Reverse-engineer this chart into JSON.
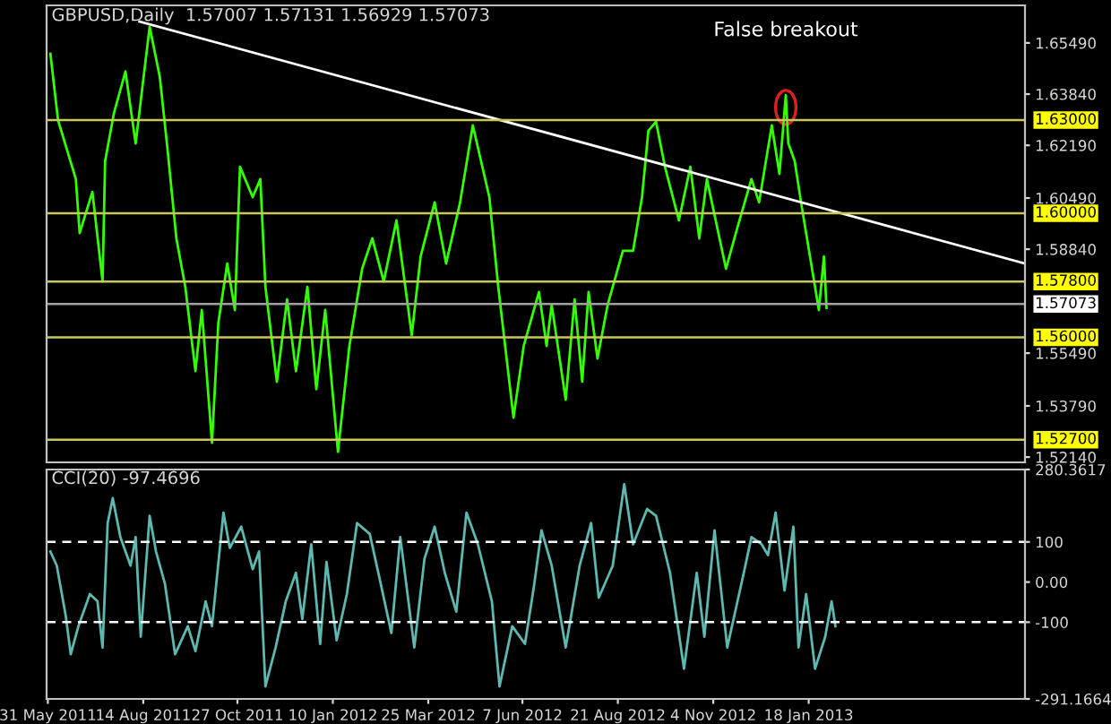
{
  "chart_data": [
    {
      "type": "line",
      "title": "GBPUSD,Daily  1.57007 1.57131 1.56929 1.57073",
      "xlim": [
        "2011-05-30",
        "2013-07-07"
      ],
      "ylim": [
        1.5197,
        1.667
      ],
      "tick_labels": "y",
      "yticks": [
        {
          "value": 1.6549,
          "label": "1.65490"
        },
        {
          "value": 1.6384,
          "label": "1.63840"
        },
        {
          "value": 1.6219,
          "label": "1.62190"
        },
        {
          "value": 1.6049,
          "label": "1.60490"
        },
        {
          "value": 1.5884,
          "label": "1.58840"
        },
        {
          "value": 1.5549,
          "label": "1.55490"
        },
        {
          "value": 1.5379,
          "label": "1.53790"
        },
        {
          "value": 1.5214,
          "label": "1.52140"
        }
      ],
      "series": [
        {
          "color": "#33ff00",
          "x": [
            "2011-06-02",
            "2011-06-08",
            "2011-06-22",
            "2011-06-25",
            "2011-07-05",
            "2011-07-13",
            "2011-07-15",
            "2011-07-22",
            "2011-07-31",
            "2011-08-08",
            "2011-08-19",
            "2011-08-27",
            "2011-09-02",
            "2011-09-09",
            "2011-09-16",
            "2011-09-24",
            "2011-09-29",
            "2011-10-07",
            "2011-10-12",
            "2011-10-19",
            "2011-10-25",
            "2011-10-29",
            "2011-11-08",
            "2011-11-14",
            "2011-11-18",
            "2011-11-27",
            "2011-12-05",
            "2011-12-12",
            "2011-12-21",
            "2011-12-28",
            "2012-01-04",
            "2012-01-14",
            "2012-01-23",
            "2012-02-02",
            "2012-02-10",
            "2012-02-19",
            "2012-02-29",
            "2012-03-12",
            "2012-03-19",
            "2012-03-30",
            "2012-04-08",
            "2012-04-19",
            "2012-04-29",
            "2012-05-12",
            "2012-05-19",
            "2012-05-31",
            "2012-06-08",
            "2012-06-20",
            "2012-06-26",
            "2012-06-30",
            "2012-07-11",
            "2012-07-18",
            "2012-07-24",
            "2012-07-29",
            "2012-08-05",
            "2012-08-13",
            "2012-08-25",
            "2012-09-02",
            "2012-09-09",
            "2012-09-14",
            "2012-09-20",
            "2012-09-27",
            "2012-10-08",
            "2012-10-17",
            "2012-10-24",
            "2012-10-30",
            "2012-11-14",
            "2012-11-23",
            "2012-12-04",
            "2012-12-10",
            "2012-12-20",
            "2012-12-26",
            "2012-12-31",
            "2013-01-02",
            "2013-01-07",
            "2013-01-12",
            "2013-01-19",
            "2013-01-26",
            "2013-01-30",
            "2013-02-01"
          ],
          "values": [
            1.6514,
            1.63,
            1.611,
            1.5936,
            1.6069,
            1.578,
            1.6168,
            1.6324,
            1.6457,
            1.6225,
            1.6601,
            1.6439,
            1.6208,
            1.5919,
            1.5763,
            1.5491,
            1.5688,
            1.526,
            1.5647,
            1.5838,
            1.5688,
            1.615,
            1.6052,
            1.611,
            1.5763,
            1.5457,
            1.5722,
            1.5491,
            1.5763,
            1.5433,
            1.5688,
            1.5231,
            1.5572,
            1.5821,
            1.5919,
            1.578,
            1.5977,
            1.5607,
            1.5861,
            1.6035,
            1.5838,
            1.6035,
            1.6283,
            1.6052,
            1.5763,
            1.5341,
            1.5572,
            1.5746,
            1.5572,
            1.5705,
            1.5399,
            1.5722,
            1.5457,
            1.5746,
            1.5532,
            1.5705,
            1.5879,
            1.5879,
            1.6052,
            1.6266,
            1.6295,
            1.615,
            1.5977,
            1.615,
            1.5919,
            1.611,
            1.5821,
            1.5954,
            1.611,
            1.6035,
            1.6283,
            1.6127,
            1.6381,
            1.6225,
            1.6168,
            1.6035,
            1.5861,
            1.5688,
            1.5861,
            1.5695
          ]
        },
        {
          "color": "#ffffff",
          "x": [
            "2011-08-11",
            "2013-07-07"
          ],
          "values": [
            1.6618,
            1.5838
          ]
        }
      ],
      "ref_lines": [
        {
          "axis": "y",
          "value": 1.63,
          "label": "1.63000",
          "color": "#c8c85a"
        },
        {
          "axis": "y",
          "value": 1.6,
          "label": "1.60000",
          "color": "#c8c85a"
        },
        {
          "axis": "y",
          "value": 1.578,
          "label": "1.57800",
          "color": "#c8c85a"
        },
        {
          "axis": "y",
          "value": 1.57073,
          "label": "1.57073",
          "color": "#a0a0a0"
        },
        {
          "axis": "y",
          "value": 1.56,
          "label": "1.56000",
          "color": "#c8c85a"
        },
        {
          "axis": "y",
          "value": 1.527,
          "label": "1.52700",
          "color": "#c8c85a"
        }
      ],
      "annotations": [
        {
          "text": "False breakout",
          "x": "2012-12-31",
          "y": 1.6381
        }
      ]
    },
    {
      "type": "line",
      "title": "CCI(20) -97.4696",
      "xlim": [
        "2011-05-30",
        "2013-07-07"
      ],
      "ylim": [
        -291.1664,
        280.3617
      ],
      "yticks": [
        280.3617,
        100,
        {
          "value": 0,
          "label": "0.00"
        },
        -100,
        -291.1664
      ],
      "xticks": [
        {
          "value": "2011-05-31",
          "label": "31 May 2011"
        },
        {
          "value": "2011-08-14",
          "label": "14 Aug 2011"
        },
        {
          "value": "2011-10-27",
          "label": "27 Oct 2011"
        },
        {
          "value": "2012-01-10",
          "label": "10 Jan 2012"
        },
        {
          "value": "2012-03-25",
          "label": "25 Mar 2012"
        },
        {
          "value": "2012-06-07",
          "label": "7 Jun 2012"
        },
        {
          "value": "2012-08-21",
          "label": "21 Aug 2012"
        },
        {
          "value": "2012-11-04",
          "label": "4 Nov 2012"
        },
        {
          "value": "2013-01-18",
          "label": "18 Jan 2013"
        }
      ],
      "series": [
        {
          "color": "#5fb8b0",
          "x": [
            "2011-06-02",
            "2011-06-07",
            "2011-06-14",
            "2011-06-18",
            "2011-06-24",
            "2011-07-03",
            "2011-07-09",
            "2011-07-13",
            "2011-07-17",
            "2011-07-21",
            "2011-07-27",
            "2011-08-04",
            "2011-08-08",
            "2011-08-12",
            "2011-08-19",
            "2011-08-24",
            "2011-08-31",
            "2011-09-08",
            "2011-09-18",
            "2011-09-24",
            "2011-10-02",
            "2011-10-07",
            "2011-10-16",
            "2011-10-21",
            "2011-10-30",
            "2011-11-08",
            "2011-11-13",
            "2011-11-18",
            "2011-11-26",
            "2011-12-04",
            "2011-12-12",
            "2011-12-17",
            "2011-12-24",
            "2011-12-31",
            "2012-01-05",
            "2012-01-13",
            "2012-01-21",
            "2012-01-29",
            "2012-02-08",
            "2012-02-16",
            "2012-02-25",
            "2012-03-03",
            "2012-03-14",
            "2012-03-22",
            "2012-03-30",
            "2012-04-07",
            "2012-04-16",
            "2012-04-24",
            "2012-05-03",
            "2012-05-14",
            "2012-05-20",
            "2012-05-30",
            "2012-06-09",
            "2012-06-16",
            "2012-06-22",
            "2012-06-30",
            "2012-07-11",
            "2012-07-22",
            "2012-07-31",
            "2012-08-06",
            "2012-08-17",
            "2012-08-26",
            "2012-09-02",
            "2012-09-13",
            "2012-09-20",
            "2012-10-01",
            "2012-10-12",
            "2012-10-22",
            "2012-10-28",
            "2012-11-05",
            "2012-11-15",
            "2012-11-28",
            "2012-12-04",
            "2012-12-12",
            "2012-12-17",
            "2012-12-23",
            "2012-12-30",
            "2013-01-06",
            "2013-01-10",
            "2013-01-16",
            "2013-01-23",
            "2013-01-31",
            "2013-02-05",
            "2013-02-08"
          ],
          "values": [
            76,
            41,
            -83,
            -180,
            -110,
            -30,
            -48,
            -163,
            147,
            209,
            112,
            41,
            112,
            -136,
            165,
            76,
            -4,
            -180,
            -110,
            -172,
            -48,
            -110,
            173,
            85,
            138,
            32,
            76,
            -260,
            -163,
            -48,
            23,
            -92,
            94,
            -154,
            50,
            -145,
            -30,
            147,
            120,
            5,
            -127,
            112,
            -163,
            58,
            138,
            23,
            -74,
            173,
            94,
            -48,
            -260,
            -110,
            -154,
            -12,
            129,
            41,
            -163,
            41,
            147,
            -39,
            41,
            244,
            94,
            182,
            165,
            23,
            -216,
            23,
            -136,
            129,
            -163,
            23,
            112,
            94,
            67,
            173,
            -21,
            138,
            -163,
            -30,
            -216,
            -136,
            -48,
            -110
          ]
        }
      ],
      "ref_lines": [
        {
          "axis": "y",
          "value": 100,
          "color": "#ffffff",
          "line_style": "dashed"
        },
        {
          "axis": "y",
          "value": -100,
          "color": "#ffffff",
          "line_style": "dashed"
        }
      ]
    }
  ]
}
